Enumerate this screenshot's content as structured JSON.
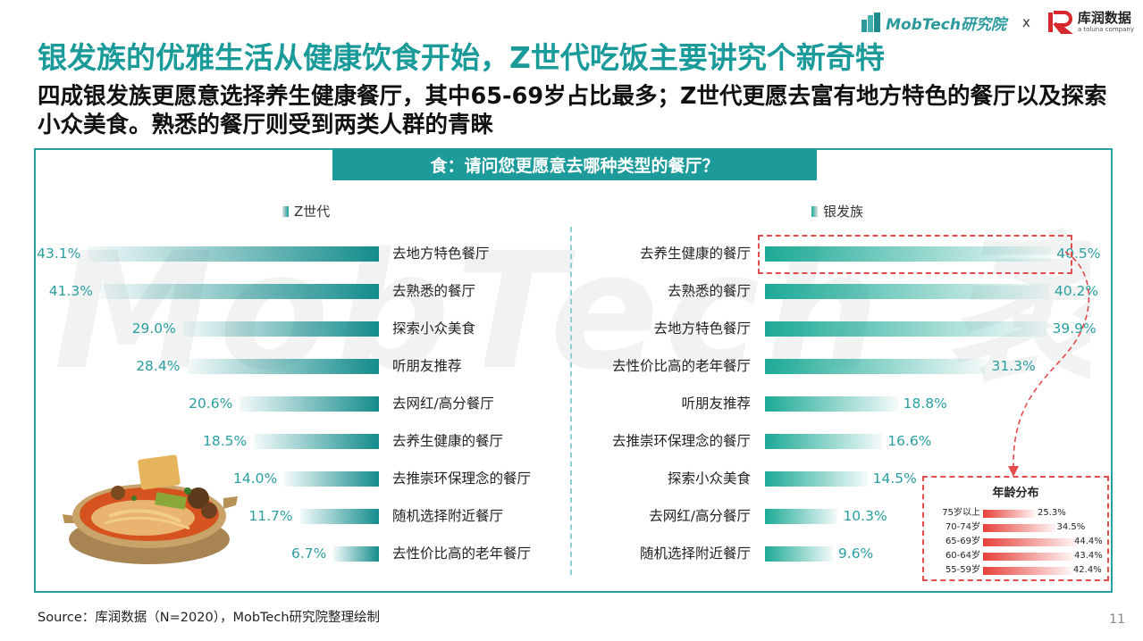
{
  "header": {
    "mobtech_logo_text": "MobTech研究院",
    "separator": "x",
    "partner_name": "库润数据",
    "partner_sub": "a toluna company"
  },
  "watermark_text": "MobTech 袤博",
  "title": "银发族的优雅生活从健康饮食开始，Z世代吃饭主要讲究个新奇特",
  "subtitle": "四成银发族更愿意选择养生健康餐厅，其中65-69岁占比最多；Z世代更愿去富有地方特色的餐厅以及探索小众美食。熟悉的餐厅则受到两类人群的青睐",
  "question": "食：请问您更愿意去哪种类型的餐厅？",
  "colors": {
    "teal": "#1d9a9a",
    "green": "#1caa96",
    "red": "#e44c4c"
  },
  "chart_data": [
    {
      "type": "bar",
      "orientation": "horizontal",
      "series_name": "Z世代",
      "categories": [
        "去地方特色餐厅",
        "去熟悉的餐厅",
        "探索小众美食",
        "听朋友推荐",
        "去网红/高分餐厅",
        "去养生健康的餐厅",
        "去推崇环保理念的餐厅",
        "随机选择附近餐厅",
        "去性价比高的老年餐厅"
      ],
      "values": [
        43.1,
        41.3,
        29.0,
        28.4,
        20.6,
        18.5,
        14.0,
        11.7,
        6.7
      ],
      "value_labels": [
        "43.1%",
        "41.3%",
        "29.0%",
        "28.4%",
        "20.6%",
        "18.5%",
        "14.0%",
        "11.7%",
        "6.7%"
      ],
      "unit": "%",
      "xlim": [
        0,
        50
      ]
    },
    {
      "type": "bar",
      "orientation": "horizontal",
      "series_name": "银发族",
      "categories": [
        "去养生健康的餐厅",
        "去熟悉的餐厅",
        "去地方特色餐厅",
        "去性价比高的老年餐厅",
        "听朋友推荐",
        "去推崇环保理念的餐厅",
        "探索小众美食",
        "去网红/高分餐厅",
        "随机选择附近餐厅"
      ],
      "values": [
        40.5,
        40.2,
        39.9,
        31.3,
        18.8,
        16.6,
        14.5,
        10.3,
        9.6
      ],
      "value_labels": [
        "40.5%",
        "40.2%",
        "39.9%",
        "31.3%",
        "18.8%",
        "16.6%",
        "14.5%",
        "10.3%",
        "9.6%"
      ],
      "unit": "%",
      "xlim": [
        0,
        50
      ]
    },
    {
      "type": "bar",
      "orientation": "horizontal",
      "title": "年龄分布",
      "categories": [
        "75岁以上",
        "70-74岁",
        "65-69岁",
        "60-64岁",
        "55-59岁"
      ],
      "values": [
        25.3,
        34.5,
        44.4,
        43.4,
        42.4
      ],
      "value_labels": [
        "25.3%",
        "34.5%",
        "44.4%",
        "43.4%",
        "42.4%"
      ],
      "unit": "%",
      "xlim": [
        0,
        50
      ]
    }
  ],
  "source": "Source：库润数据（N=2020），MobTech研究院整理绘制",
  "page_number": "11"
}
